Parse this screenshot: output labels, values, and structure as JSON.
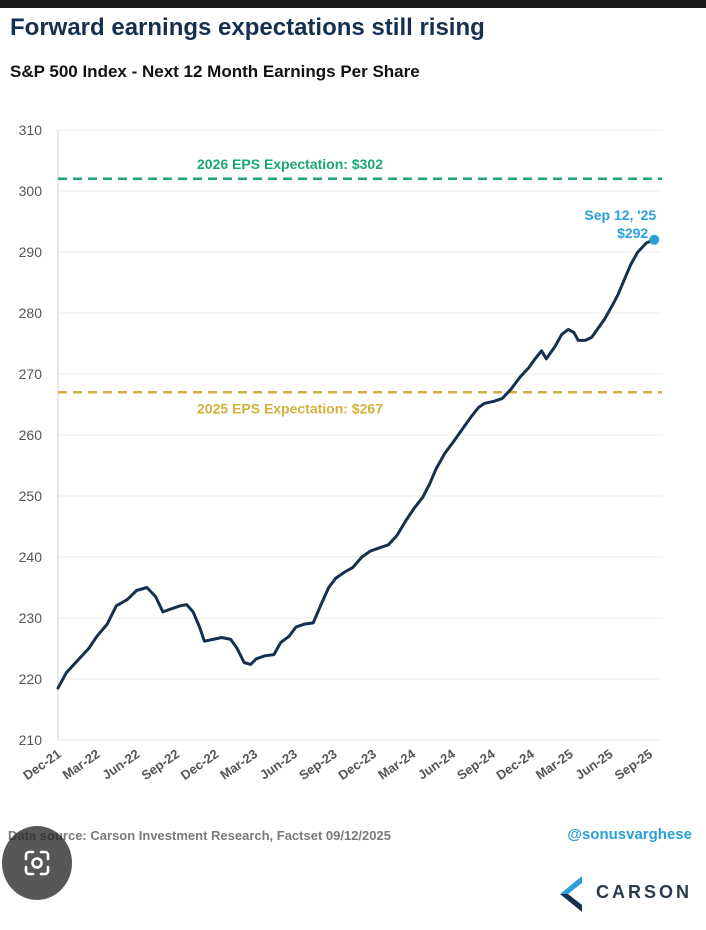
{
  "chart_data": {
    "type": "line",
    "title": "Forward earnings expectations still rising",
    "subtitle": "S&P 500 Index - Next 12 Month Earnings Per Share",
    "xlabel": "",
    "ylabel": "",
    "ylim": [
      210,
      310
    ],
    "yticks": [
      210,
      220,
      230,
      240,
      250,
      260,
      270,
      280,
      290,
      300,
      310
    ],
    "xlim": [
      "2021-12-01",
      "2025-09-30"
    ],
    "xtick_labels": [
      {
        "label": "Dec-21",
        "date": "2021-12-01"
      },
      {
        "label": "Mar-22",
        "date": "2022-03-01"
      },
      {
        "label": "Jun-22",
        "date": "2022-06-01"
      },
      {
        "label": "Sep-22",
        "date": "2022-09-01"
      },
      {
        "label": "Dec-22",
        "date": "2022-12-01"
      },
      {
        "label": "Mar-23",
        "date": "2023-03-01"
      },
      {
        "label": "Jun-23",
        "date": "2023-06-01"
      },
      {
        "label": "Sep-23",
        "date": "2023-09-01"
      },
      {
        "label": "Dec-23",
        "date": "2023-12-01"
      },
      {
        "label": "Mar-24",
        "date": "2024-03-01"
      },
      {
        "label": "Jun-24",
        "date": "2024-06-01"
      },
      {
        "label": "Sep-24",
        "date": "2024-09-01"
      },
      {
        "label": "Dec-24",
        "date": "2024-12-01"
      },
      {
        "label": "Mar-25",
        "date": "2025-03-01"
      },
      {
        "label": "Jun-25",
        "date": "2025-06-01"
      },
      {
        "label": "Sep-25",
        "date": "2025-09-01"
      }
    ],
    "grid": true,
    "series": [
      {
        "color": "#16304f",
        "points": [
          [
            "2021-12-01",
            218.5
          ],
          [
            "2021-12-20",
            221
          ],
          [
            "2022-01-15",
            223
          ],
          [
            "2022-02-10",
            225
          ],
          [
            "2022-03-01",
            227
          ],
          [
            "2022-03-25",
            229
          ],
          [
            "2022-04-15",
            232
          ],
          [
            "2022-05-10",
            233
          ],
          [
            "2022-06-01",
            234.5
          ],
          [
            "2022-06-25",
            235
          ],
          [
            "2022-07-15",
            233.5
          ],
          [
            "2022-08-01",
            231
          ],
          [
            "2022-08-20",
            231.5
          ],
          [
            "2022-09-10",
            232
          ],
          [
            "2022-09-25",
            232.2
          ],
          [
            "2022-10-10",
            231
          ],
          [
            "2022-10-25",
            228.5
          ],
          [
            "2022-11-05",
            226.2
          ],
          [
            "2022-11-25",
            226.5
          ],
          [
            "2022-12-15",
            226.8
          ],
          [
            "2023-01-05",
            226.5
          ],
          [
            "2023-01-20",
            225
          ],
          [
            "2023-02-05",
            222.7
          ],
          [
            "2023-02-20",
            222.4
          ],
          [
            "2023-03-05",
            223.3
          ],
          [
            "2023-03-25",
            223.8
          ],
          [
            "2023-04-15",
            224
          ],
          [
            "2023-05-01",
            226
          ],
          [
            "2023-05-20",
            227
          ],
          [
            "2023-06-05",
            228.5
          ],
          [
            "2023-06-25",
            229
          ],
          [
            "2023-07-15",
            229.2
          ],
          [
            "2023-08-01",
            232
          ],
          [
            "2023-08-20",
            235
          ],
          [
            "2023-09-05",
            236.5
          ],
          [
            "2023-09-25",
            237.5
          ],
          [
            "2023-10-15",
            238.3
          ],
          [
            "2023-11-05",
            240
          ],
          [
            "2023-11-25",
            241
          ],
          [
            "2023-12-15",
            241.5
          ],
          [
            "2024-01-05",
            242
          ],
          [
            "2024-01-25",
            243.5
          ],
          [
            "2024-02-15",
            246
          ],
          [
            "2024-03-05",
            248
          ],
          [
            "2024-03-25",
            249.8
          ],
          [
            "2024-04-10",
            252
          ],
          [
            "2024-04-25",
            254.5
          ],
          [
            "2024-05-15",
            257
          ],
          [
            "2024-06-05",
            259
          ],
          [
            "2024-06-25",
            261
          ],
          [
            "2024-07-15",
            263
          ],
          [
            "2024-08-01",
            264.5
          ],
          [
            "2024-08-15",
            265.2
          ],
          [
            "2024-09-05",
            265.5
          ],
          [
            "2024-09-25",
            266
          ],
          [
            "2024-10-15",
            267.5
          ],
          [
            "2024-11-05",
            269.5
          ],
          [
            "2024-11-25",
            271
          ],
          [
            "2024-12-10",
            272.5
          ],
          [
            "2024-12-25",
            273.8
          ],
          [
            "2025-01-05",
            272.5
          ],
          [
            "2025-01-25",
            274.5
          ],
          [
            "2025-02-10",
            276.5
          ],
          [
            "2025-02-25",
            277.3
          ],
          [
            "2025-03-10",
            276.8
          ],
          [
            "2025-03-20",
            275.5
          ],
          [
            "2025-04-05",
            275.5
          ],
          [
            "2025-04-20",
            276
          ],
          [
            "2025-05-05",
            277.5
          ],
          [
            "2025-05-20",
            279
          ],
          [
            "2025-06-05",
            281
          ],
          [
            "2025-06-20",
            283
          ],
          [
            "2025-07-05",
            285.5
          ],
          [
            "2025-07-20",
            288
          ],
          [
            "2025-08-05",
            290
          ],
          [
            "2025-08-25",
            291.5
          ],
          [
            "2025-09-12",
            292
          ]
        ]
      }
    ],
    "reference_lines": [
      {
        "y": 302,
        "label": "2026 EPS Expectation: $302",
        "color": "#1aa870"
      },
      {
        "y": 267,
        "label": "2025 EPS Expectation: $267",
        "color": "#d4b13a"
      }
    ],
    "endpoint_annotation": {
      "date": "2025-09-12",
      "y": 292,
      "line1": "Sep 12, '25",
      "line2": "$292",
      "color": "#2a9fd8"
    }
  },
  "footer": {
    "source": "Data source: Carson Investment Research, Factset   09/12/2025",
    "handle": "@sonusvarghese",
    "logo_text": "CARSON"
  },
  "overlay": {
    "lens_icon": "google-lens-icon"
  }
}
